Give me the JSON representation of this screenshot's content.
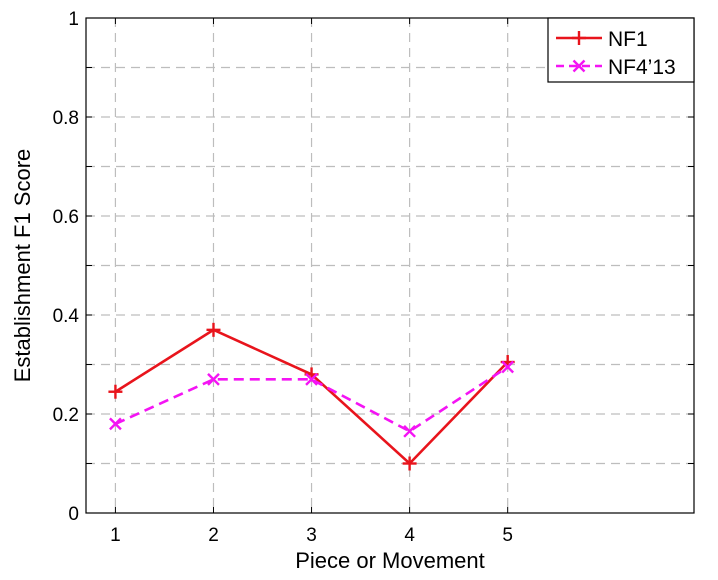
{
  "chart_data": {
    "type": "line",
    "x": [
      1,
      2,
      3,
      4,
      5
    ],
    "series": [
      {
        "name": "NF1",
        "values": [
          0.245,
          0.37,
          0.28,
          0.1,
          0.305
        ],
        "color": "#e8141c",
        "line_style": "solid",
        "marker": "plus"
      },
      {
        "name": "NF4’13",
        "values": [
          0.18,
          0.27,
          0.27,
          0.165,
          0.295
        ],
        "color": "#f414f4",
        "line_style": "dashed",
        "marker": "x"
      }
    ],
    "xlabel": "Piece or Movement",
    "ylabel": "Establishment F1 Score",
    "xlim": [
      0.7,
      6.9
    ],
    "ylim": [
      0,
      1
    ],
    "x_ticks": [
      "1",
      "2",
      "3",
      "4",
      "5"
    ],
    "y_ticks": [
      "0",
      "0.2",
      "0.4",
      "0.6",
      "0.8",
      "1"
    ],
    "y_grid_values": [
      0,
      0.1,
      0.2,
      0.3,
      0.4,
      0.5,
      0.6,
      0.7,
      0.8,
      0.9,
      1
    ],
    "grid": true,
    "grid_style": "dashed",
    "legend_position": "top-right"
  }
}
